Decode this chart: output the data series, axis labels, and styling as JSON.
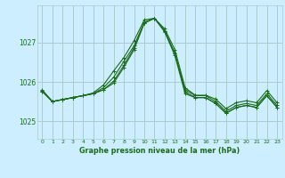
{
  "title": "Graphe pression niveau de la mer (hPa)",
  "background_color": "#cceeff",
  "grid_color": "#aacccc",
  "line_color": "#1a6b1a",
  "xlim": [
    -0.5,
    23.5
  ],
  "ylim": [
    1024.55,
    1027.95
  ],
  "yticks": [
    1025,
    1026,
    1027
  ],
  "xticks": [
    0,
    1,
    2,
    3,
    4,
    5,
    6,
    7,
    8,
    9,
    10,
    11,
    12,
    13,
    14,
    15,
    16,
    17,
    18,
    19,
    20,
    21,
    22,
    23
  ],
  "series": [
    [
      1025.8,
      1025.5,
      1025.55,
      1025.6,
      1025.65,
      1025.72,
      1025.92,
      1026.28,
      1026.62,
      1027.05,
      1027.58,
      1027.62,
      1027.35,
      1026.82,
      1025.85,
      1025.66,
      1025.66,
      1025.56,
      1025.32,
      1025.47,
      1025.52,
      1025.47,
      1025.78,
      1025.47
    ],
    [
      1025.78,
      1025.5,
      1025.55,
      1025.6,
      1025.65,
      1025.7,
      1025.85,
      1026.12,
      1026.52,
      1026.92,
      1027.52,
      1027.62,
      1027.3,
      1026.72,
      1025.8,
      1025.65,
      1025.65,
      1025.5,
      1025.25,
      1025.4,
      1025.45,
      1025.4,
      1025.7,
      1025.4
    ],
    [
      1025.76,
      1025.5,
      1025.55,
      1025.6,
      1025.65,
      1025.7,
      1025.8,
      1026.02,
      1026.42,
      1026.87,
      1027.5,
      1027.62,
      1027.3,
      1026.72,
      1025.75,
      1025.6,
      1025.6,
      1025.45,
      1025.2,
      1025.35,
      1025.4,
      1025.35,
      1025.65,
      1025.35
    ],
    [
      1025.76,
      1025.5,
      1025.55,
      1025.6,
      1025.65,
      1025.7,
      1025.8,
      1025.97,
      1026.37,
      1026.82,
      1027.5,
      1027.62,
      1027.27,
      1026.67,
      1025.7,
      1025.6,
      1025.6,
      1025.45,
      1025.2,
      1025.35,
      1025.4,
      1025.35,
      1025.65,
      1025.35
    ]
  ]
}
